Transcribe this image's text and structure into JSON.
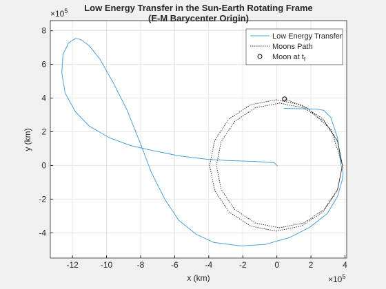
{
  "chart_data": {
    "type": "line",
    "title": "Low Energy Transfer in the Sun-Earth Rotating Frame",
    "subtitle": "(E-M Barycenter Origin)",
    "x_label": "x (km)",
    "y_label": "y (km)",
    "x_multiplier": {
      "base": "×10",
      "power": "5"
    },
    "y_multiplier": {
      "base": "×10",
      "power": "5"
    },
    "xlim": [
      -13.3,
      4.1
    ],
    "ylim": [
      -5.5,
      8.6
    ],
    "xticks": [
      -12,
      -10,
      -8,
      -6,
      -4,
      -2,
      0,
      2,
      4
    ],
    "yticks": [
      -4,
      -2,
      0,
      2,
      4,
      6,
      8
    ],
    "grid": true,
    "legend": "northeast",
    "series": [
      {
        "name": "Low Energy Transfer",
        "color": "#4d9fd8",
        "style": "solid",
        "x": [
          0.04,
          -0.16,
          -1.3,
          -2.91,
          -4.13,
          -5.75,
          -7.37,
          -8.58,
          -9.8,
          -11.01,
          -11.82,
          -12.43,
          -12.63,
          -12.55,
          -12.23,
          -11.82,
          -11.5,
          -11.01,
          -10.4,
          -9.6,
          -8.79,
          -7.98,
          -7.37,
          -6.56,
          -5.75,
          -4.74,
          -3.72,
          -2.11,
          -0.69,
          0.73,
          1.94,
          2.96,
          3.56,
          3.85,
          3.89,
          3.77,
          3.56,
          3.16,
          2.75,
          2.35,
          0.4
        ],
        "values": [
          -0.04,
          0.16,
          0.24,
          0.29,
          0.37,
          0.57,
          0.9,
          1.18,
          1.63,
          2.33,
          3.18,
          4.29,
          5.51,
          6.61,
          7.27,
          7.55,
          7.47,
          7.1,
          6.33,
          4.9,
          3.27,
          1.22,
          -0.41,
          -2.04,
          -3.27,
          -4.08,
          -4.57,
          -4.78,
          -4.69,
          -4.29,
          -3.67,
          -2.86,
          -1.84,
          -0.82,
          -0.41,
          0,
          1.63,
          2.86,
          3.27,
          3.35,
          3.39
        ]
      },
      {
        "name": "Moons Path",
        "color": "#262626",
        "style": "dotted",
        "x": [
          3.85,
          3.57,
          2.77,
          1.57,
          0.15,
          -1.27,
          -2.47,
          -3.27,
          -3.55,
          -3.27,
          -2.47,
          -1.27,
          0.15,
          1.57,
          2.77,
          3.57,
          3.85,
          3.55,
          2.71,
          1.44,
          -0.05,
          -1.54,
          -2.81,
          -3.65,
          -3.95,
          -3.65,
          -2.81,
          -1.54,
          -0.05,
          1.44,
          2.71,
          3.55,
          3.85,
          3.2,
          1.8,
          0.45
        ],
        "values": [
          0,
          1.42,
          2.62,
          3.42,
          3.7,
          3.42,
          2.62,
          1.42,
          0,
          -1.42,
          -2.62,
          -3.42,
          -3.7,
          -3.42,
          -2.62,
          -1.42,
          0,
          1.49,
          2.76,
          3.6,
          3.9,
          3.6,
          2.76,
          1.49,
          0,
          -1.49,
          -2.76,
          -3.6,
          -3.9,
          -3.6,
          -2.76,
          -1.49,
          0,
          2.1,
          3.4,
          3.95
        ]
      },
      {
        "name": "Moon at t",
        "subscript": "f",
        "color": "#000000",
        "style": "marker",
        "x": [
          0.45
        ],
        "values": [
          3.95
        ]
      }
    ]
  }
}
